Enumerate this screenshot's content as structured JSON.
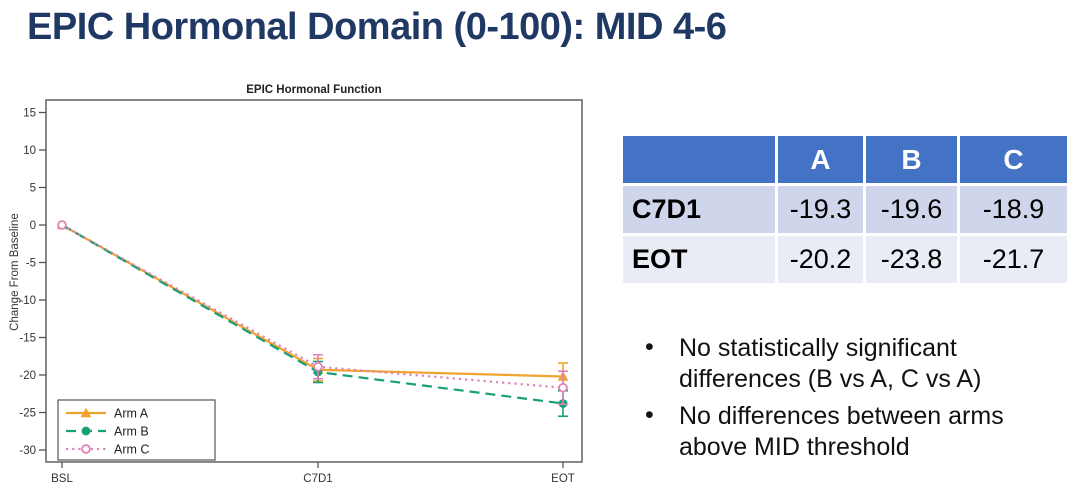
{
  "slide": {
    "title": "EPIC Hormonal Domain (0-100): MID 4-6",
    "title_color": "#1F3864",
    "background": "#FFFFFF"
  },
  "chart_data": {
    "type": "line",
    "title": "EPIC Hormonal Function",
    "xlabel": "",
    "ylabel": "Change From Baseline",
    "categories": [
      "BSL",
      "C7D1",
      "EOT"
    ],
    "yticks": [
      15,
      10,
      5,
      0,
      -5,
      -10,
      -15,
      -20,
      -25,
      -30
    ],
    "ylim": [
      -31.5,
      16.5
    ],
    "grid": false,
    "legend_position": "bottom-left",
    "series": [
      {
        "name": "Arm A",
        "color": "#F0A330",
        "line_style": "solid",
        "marker": "triangle-filled",
        "values": [
          0,
          -19.3,
          -20.2
        ],
        "errors": [
          0,
          1.5,
          1.8
        ]
      },
      {
        "name": "Arm B",
        "color": "#17A077",
        "line_style": "dashed",
        "marker": "circle-filled",
        "values": [
          0,
          -19.6,
          -23.8
        ],
        "errors": [
          0,
          1.4,
          1.7
        ]
      },
      {
        "name": "Arm C",
        "color": "#DE82B8",
        "line_style": "dotted",
        "marker": "circle-open",
        "values": [
          0,
          -18.9,
          -21.7
        ],
        "errors": [
          0,
          1.6,
          2.2
        ]
      }
    ],
    "axis_text_color": "#333333",
    "plot_border_color": "#6A6A6A"
  },
  "table": {
    "header": [
      "",
      "A",
      "B",
      "C"
    ],
    "rows": [
      {
        "label": "C7D1",
        "values": [
          "-19.3",
          "-19.6",
          "-18.9"
        ]
      },
      {
        "label": "EOT",
        "values": [
          "-20.2",
          "-23.8",
          "-21.7"
        ]
      }
    ],
    "colors": {
      "header_bg": "#4472C4",
      "header_text": "#FFFFFF",
      "row1_bg": "#CFD5EA",
      "row2_bg": "#E9EBF5"
    }
  },
  "bullets": {
    "items": [
      "No statistically significant differences (B vs A, C vs A)",
      "No differences between arms above MID threshold"
    ]
  }
}
